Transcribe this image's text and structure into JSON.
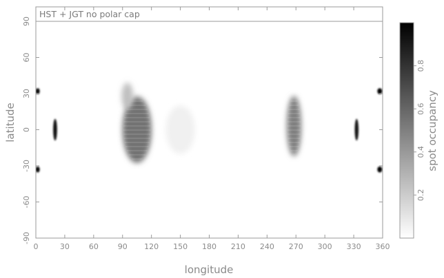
{
  "chart_data": {
    "type": "heatmap",
    "title": "HST + JGT no polar cap",
    "xlabel": "longitude",
    "ylabel": "latitude",
    "colorbar_label": "spot occupancy",
    "xlim": [
      0,
      360
    ],
    "ylim": [
      -90,
      90
    ],
    "x_ticks": [
      "0",
      "30",
      "60",
      "90",
      "120",
      "150",
      "180",
      "210",
      "240",
      "270",
      "300",
      "330",
      "360"
    ],
    "y_ticks": [
      "-90",
      "-60",
      "-30",
      "0",
      "30",
      "60",
      "90"
    ],
    "colorbar_range": [
      0,
      1
    ],
    "colorbar_ticks": [
      "0.2",
      "0.4",
      "0.6",
      "0.8"
    ],
    "colormap": "white-to-black grayscale",
    "features": [
      {
        "lon": 105,
        "lat": 0,
        "lon_width": 30,
        "lat_width": 55,
        "occupancy": 0.55
      },
      {
        "lon": 95,
        "lat": 28,
        "lon_width": 12,
        "lat_width": 22,
        "occupancy": 0.25
      },
      {
        "lon": 150,
        "lat": 0,
        "lon_width": 30,
        "lat_width": 40,
        "occupancy": 0.06
      },
      {
        "lon": 268,
        "lat": 3,
        "lon_width": 15,
        "lat_width": 50,
        "occupancy": 0.5
      },
      {
        "lon": 20,
        "lat": 0,
        "lon_width": 4,
        "lat_width": 18,
        "occupancy": 0.95
      },
      {
        "lon": 333,
        "lat": 0,
        "lon_width": 4,
        "lat_width": 18,
        "occupancy": 0.9
      },
      {
        "lon": 2,
        "lat": 32,
        "lon_width": 4,
        "lat_width": 5,
        "occupancy": 1.0
      },
      {
        "lon": 2,
        "lat": -33,
        "lon_width": 4,
        "lat_width": 5,
        "occupancy": 1.0
      },
      {
        "lon": 357,
        "lat": 32,
        "lon_width": 5,
        "lat_width": 5,
        "occupancy": 1.0
      },
      {
        "lon": 357,
        "lat": -33,
        "lon_width": 5,
        "lat_width": 5,
        "occupancy": 1.0
      }
    ],
    "grid": false
  }
}
